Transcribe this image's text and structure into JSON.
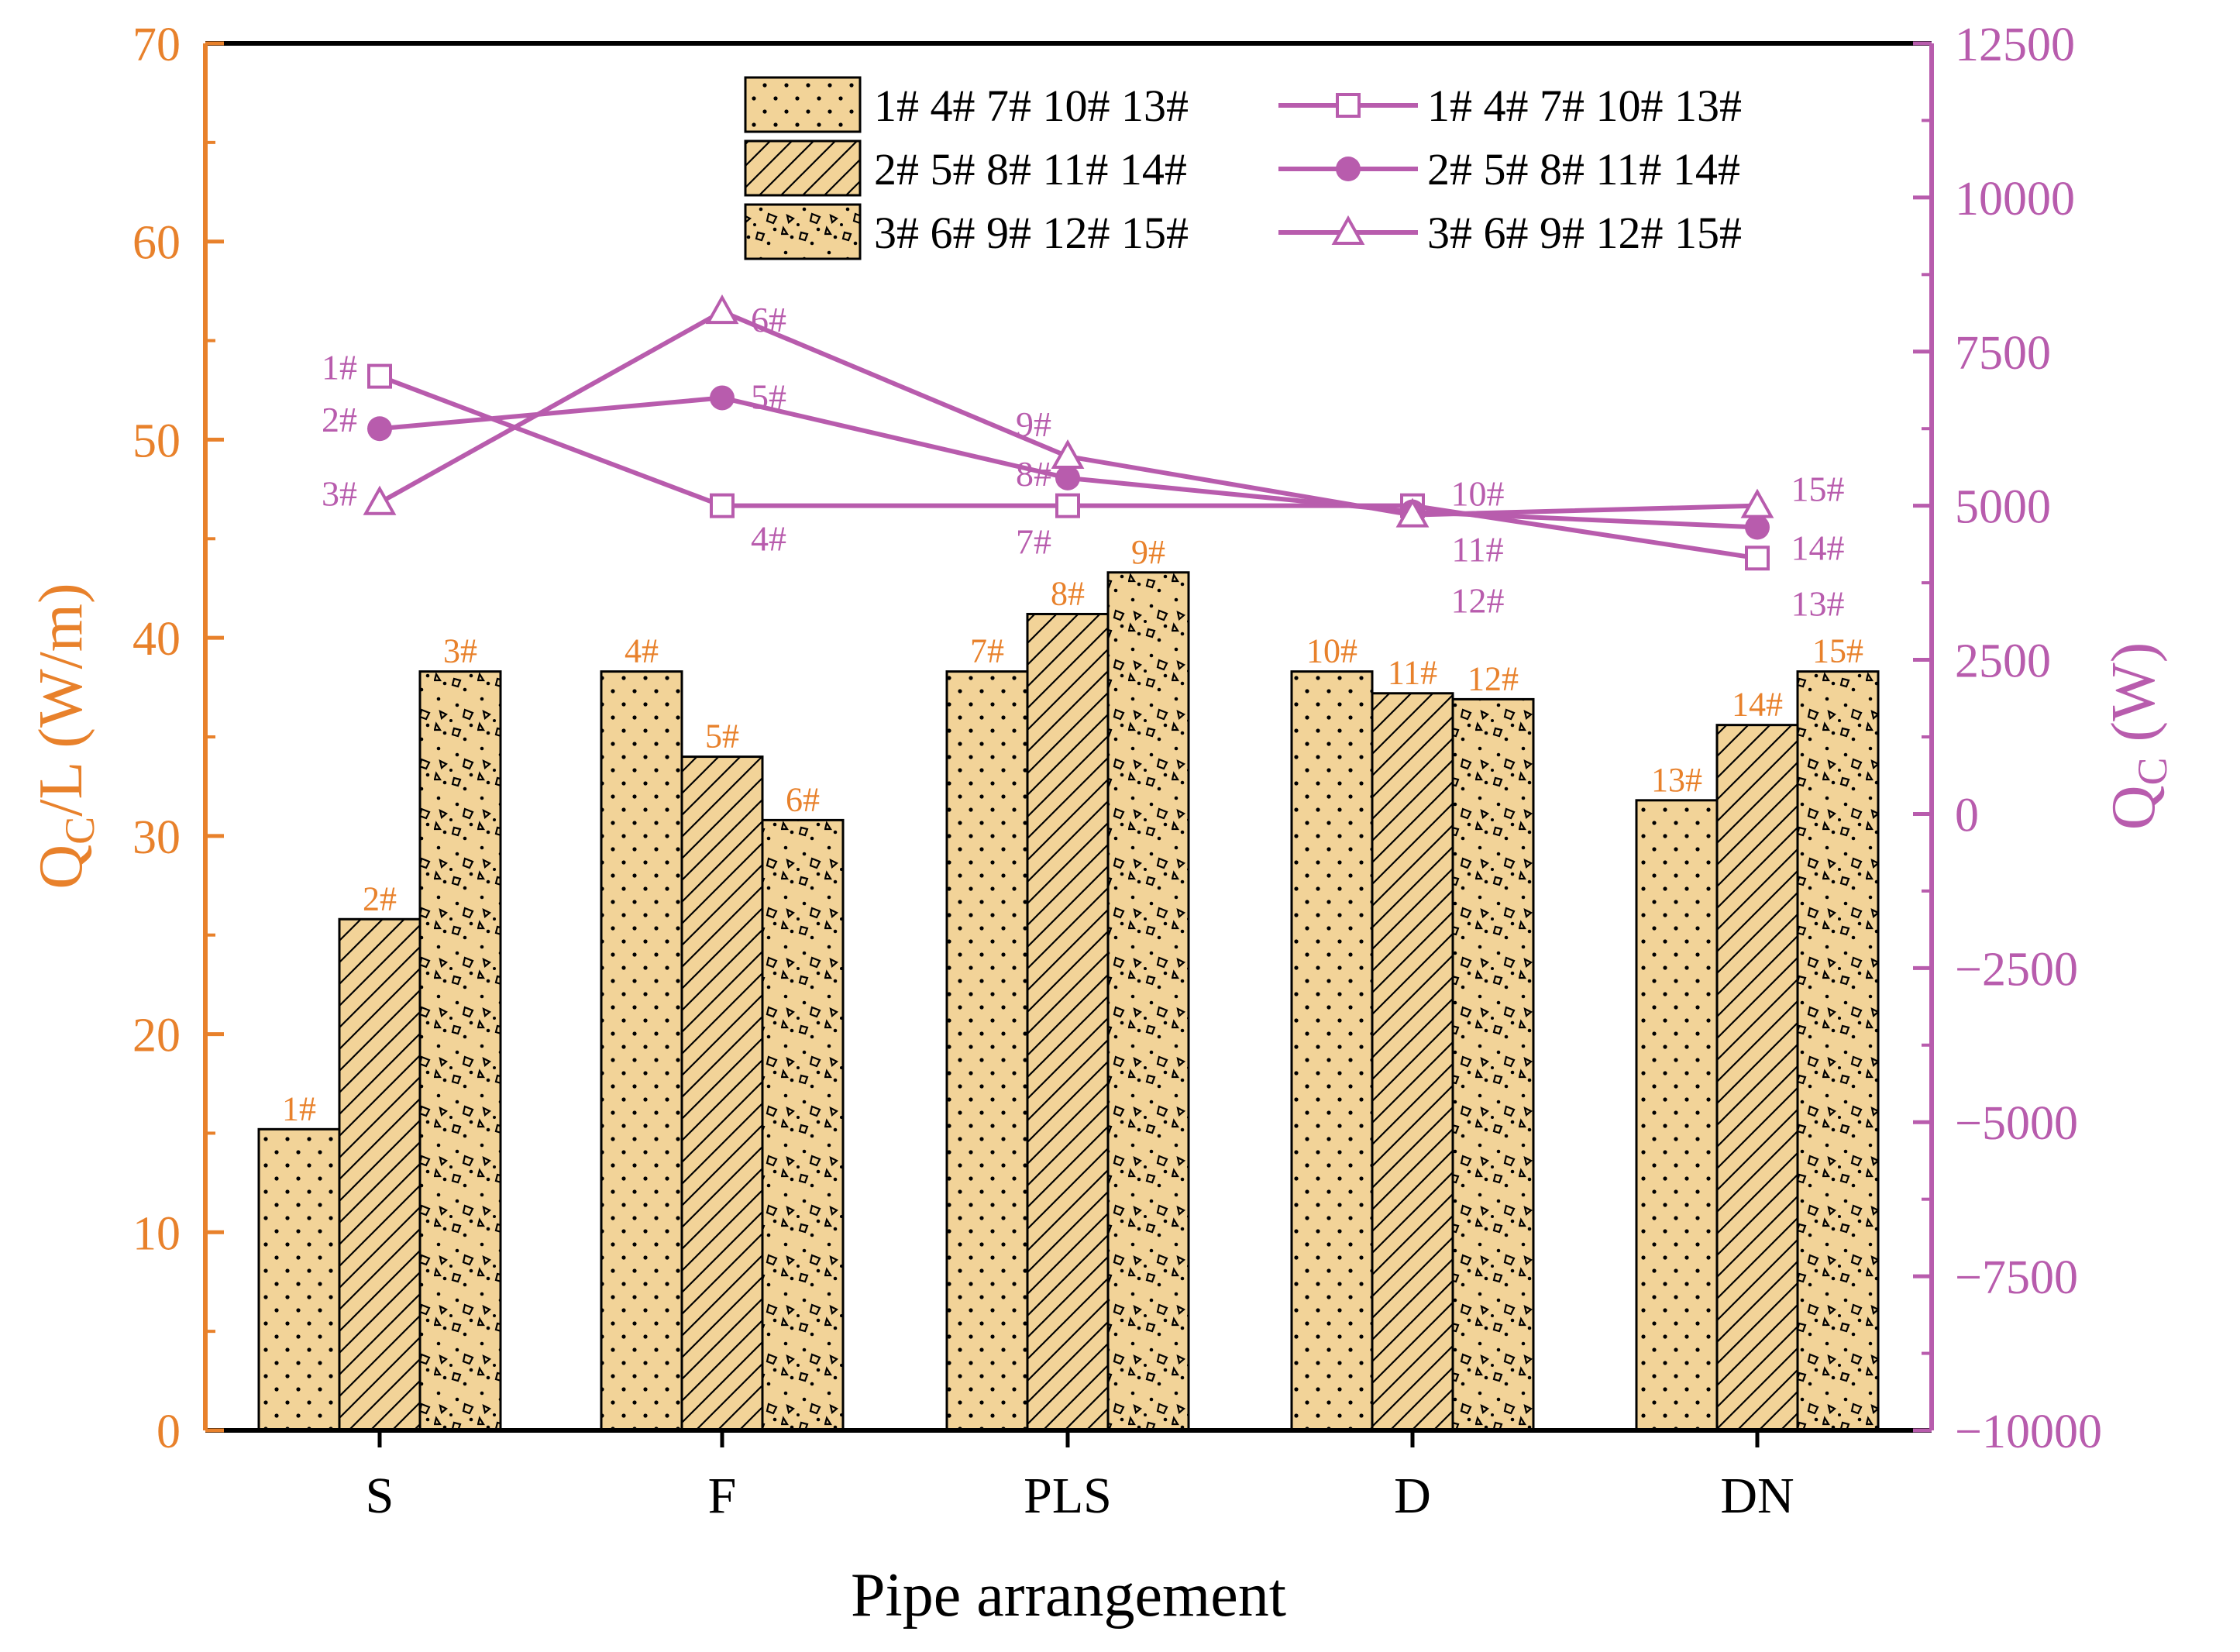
{
  "colors": {
    "left_axis": "#E8812B",
    "right_axis": "#B85CAD",
    "bar_fill": "#F2D398",
    "line": "#B85CAD"
  },
  "chart_data": {
    "type": "bar",
    "xlabel": "Pipe arrangement",
    "ylabel_left": {
      "base": "Q",
      "sub": "C",
      "rest": "/L (W/m)"
    },
    "ylabel_right": {
      "base": "Q",
      "sub": "C",
      "rest": " (W)"
    },
    "categories": [
      "S",
      "F",
      "PLS",
      "D",
      "DN"
    ],
    "ylim_left": [
      0,
      70
    ],
    "yticks_left": [
      0,
      10,
      20,
      30,
      40,
      50,
      60,
      70
    ],
    "ylim_right": [
      -10000,
      12500
    ],
    "yticks_right": [
      -10000,
      -7500,
      -5000,
      -2500,
      0,
      2500,
      5000,
      7500,
      10000,
      12500
    ],
    "bar_series": [
      {
        "name": "1# 4# 7# 10# 13#",
        "pattern": "dots",
        "values": [
          15.2,
          38.3,
          38.3,
          38.3,
          31.8
        ],
        "labels": [
          "1#",
          "4#",
          "7#",
          "10#",
          "13#"
        ]
      },
      {
        "name": "2# 5# 8# 11# 14#",
        "pattern": "hatch",
        "values": [
          25.8,
          34.0,
          41.2,
          37.2,
          35.6
        ],
        "labels": [
          "2#",
          "5#",
          "8#",
          "11#",
          "14#"
        ]
      },
      {
        "name": "3# 6# 9# 12# 15#",
        "pattern": "concrete",
        "values": [
          38.3,
          30.8,
          43.3,
          36.9,
          38.3
        ],
        "labels": [
          "3#",
          "6#",
          "9#",
          "12#",
          "15#"
        ]
      }
    ],
    "line_series": [
      {
        "name": "1# 4# 7# 10# 13#",
        "marker": "square",
        "values": [
          7100,
          5000,
          5000,
          5000,
          4150
        ],
        "labels": [
          "1#",
          "4#",
          "7#",
          "10#",
          "13#"
        ]
      },
      {
        "name": "2# 5# 8# 11# 14#",
        "marker": "circle",
        "values": [
          6250,
          6750,
          5450,
          4900,
          4650
        ],
        "labels": [
          "2#",
          "5#",
          "8#",
          "11#",
          "14#"
        ]
      },
      {
        "name": "3# 6# 9# 12# 15#",
        "marker": "triangle",
        "values": [
          5050,
          8150,
          5800,
          4850,
          5000
        ],
        "labels": [
          "3#",
          "6#",
          "9#",
          "12#",
          "15#"
        ]
      }
    ],
    "legend_position": "top"
  }
}
